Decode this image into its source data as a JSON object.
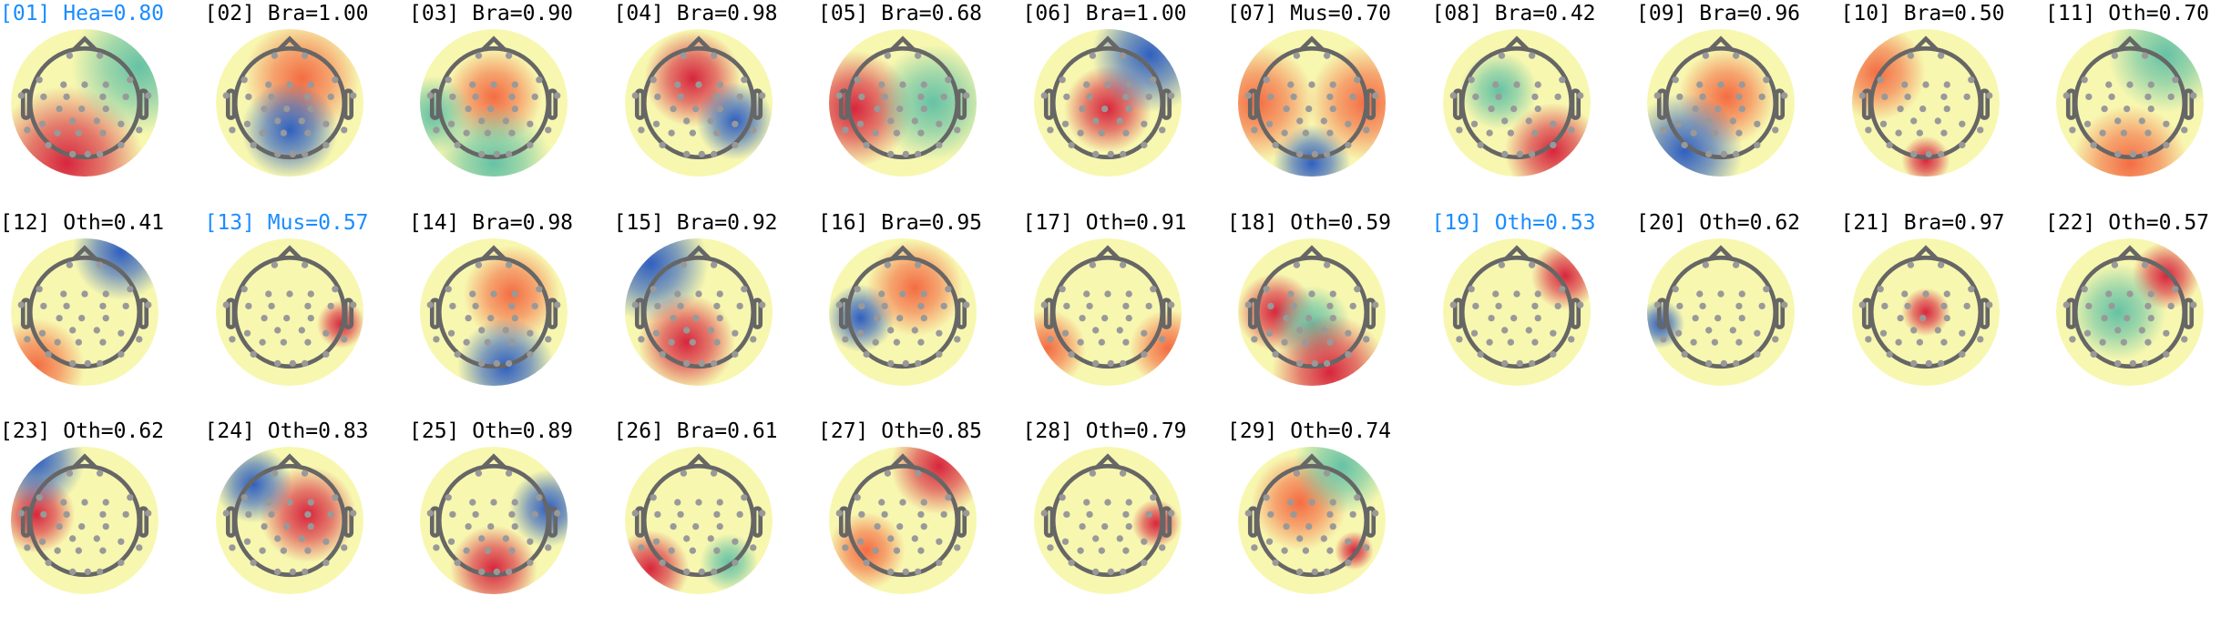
{
  "highlight_color": "#1a8cff",
  "components": [
    {
      "label": "[01] Hea=0.80",
      "flagged": true
    },
    {
      "label": "[02] Bra=1.00",
      "flagged": false
    },
    {
      "label": "[03] Bra=0.90",
      "flagged": false
    },
    {
      "label": "[04] Bra=0.98",
      "flagged": false
    },
    {
      "label": "[05] Bra=0.68",
      "flagged": false
    },
    {
      "label": "[06] Bra=1.00",
      "flagged": false
    },
    {
      "label": "[07] Mus=0.70",
      "flagged": false
    },
    {
      "label": "[08] Bra=0.42",
      "flagged": false
    },
    {
      "label": "[09] Bra=0.96",
      "flagged": false
    },
    {
      "label": "[10] Bra=0.50",
      "flagged": false
    },
    {
      "label": "[11] Oth=0.70",
      "flagged": false
    },
    {
      "label": "[12] Oth=0.41",
      "flagged": false
    },
    {
      "label": "[13] Mus=0.57",
      "flagged": true
    },
    {
      "label": "[14] Bra=0.98",
      "flagged": false
    },
    {
      "label": "[15] Bra=0.92",
      "flagged": false
    },
    {
      "label": "[16] Bra=0.95",
      "flagged": false
    },
    {
      "label": "[17] Oth=0.91",
      "flagged": false
    },
    {
      "label": "[18] Oth=0.59",
      "flagged": false
    },
    {
      "label": "[19] Oth=0.53",
      "flagged": true
    },
    {
      "label": "[20] Oth=0.62",
      "flagged": false
    },
    {
      "label": "[21] Bra=0.97",
      "flagged": false
    },
    {
      "label": "[22] Oth=0.57",
      "flagged": false
    },
    {
      "label": "[23] Oth=0.62",
      "flagged": false
    },
    {
      "label": "[24] Oth=0.83",
      "flagged": false
    },
    {
      "label": "[25] Oth=0.89",
      "flagged": false
    },
    {
      "label": "[26] Bra=0.61",
      "flagged": false
    },
    {
      "label": "[27] Oth=0.85",
      "flagged": false
    },
    {
      "label": "[28] Oth=0.79",
      "flagged": false
    },
    {
      "label": "[29] Oth=0.74",
      "flagged": false
    }
  ]
}
